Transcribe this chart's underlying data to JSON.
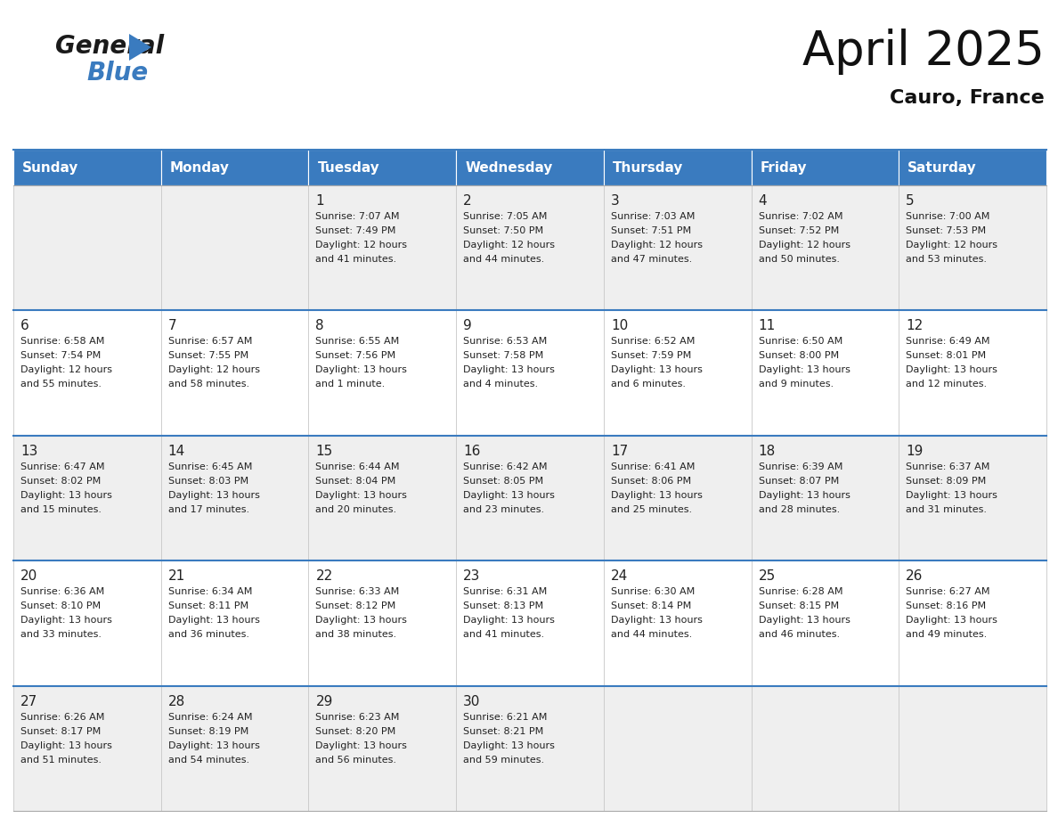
{
  "title": "April 2025",
  "subtitle": "Cauro, France",
  "days_of_week": [
    "Sunday",
    "Monday",
    "Tuesday",
    "Wednesday",
    "Thursday",
    "Friday",
    "Saturday"
  ],
  "header_bg": "#3a7bbf",
  "header_text": "#ffffff",
  "cell_bg_even": "#efefef",
  "cell_bg_odd": "#ffffff",
  "cell_border": "#3a7bbf",
  "row_border": "#3a7bbf",
  "day_num_color": "#222222",
  "text_color": "#222222",
  "title_color": "#111111",
  "subtitle_color": "#111111",
  "logo_black_color": "#1a1a1a",
  "logo_blue_color": "#3a7bbf",
  "weeks": [
    [
      {
        "day": null,
        "text": ""
      },
      {
        "day": null,
        "text": ""
      },
      {
        "day": 1,
        "text": "Sunrise: 7:07 AM\nSunset: 7:49 PM\nDaylight: 12 hours\nand 41 minutes."
      },
      {
        "day": 2,
        "text": "Sunrise: 7:05 AM\nSunset: 7:50 PM\nDaylight: 12 hours\nand 44 minutes."
      },
      {
        "day": 3,
        "text": "Sunrise: 7:03 AM\nSunset: 7:51 PM\nDaylight: 12 hours\nand 47 minutes."
      },
      {
        "day": 4,
        "text": "Sunrise: 7:02 AM\nSunset: 7:52 PM\nDaylight: 12 hours\nand 50 minutes."
      },
      {
        "day": 5,
        "text": "Sunrise: 7:00 AM\nSunset: 7:53 PM\nDaylight: 12 hours\nand 53 minutes."
      }
    ],
    [
      {
        "day": 6,
        "text": "Sunrise: 6:58 AM\nSunset: 7:54 PM\nDaylight: 12 hours\nand 55 minutes."
      },
      {
        "day": 7,
        "text": "Sunrise: 6:57 AM\nSunset: 7:55 PM\nDaylight: 12 hours\nand 58 minutes."
      },
      {
        "day": 8,
        "text": "Sunrise: 6:55 AM\nSunset: 7:56 PM\nDaylight: 13 hours\nand 1 minute."
      },
      {
        "day": 9,
        "text": "Sunrise: 6:53 AM\nSunset: 7:58 PM\nDaylight: 13 hours\nand 4 minutes."
      },
      {
        "day": 10,
        "text": "Sunrise: 6:52 AM\nSunset: 7:59 PM\nDaylight: 13 hours\nand 6 minutes."
      },
      {
        "day": 11,
        "text": "Sunrise: 6:50 AM\nSunset: 8:00 PM\nDaylight: 13 hours\nand 9 minutes."
      },
      {
        "day": 12,
        "text": "Sunrise: 6:49 AM\nSunset: 8:01 PM\nDaylight: 13 hours\nand 12 minutes."
      }
    ],
    [
      {
        "day": 13,
        "text": "Sunrise: 6:47 AM\nSunset: 8:02 PM\nDaylight: 13 hours\nand 15 minutes."
      },
      {
        "day": 14,
        "text": "Sunrise: 6:45 AM\nSunset: 8:03 PM\nDaylight: 13 hours\nand 17 minutes."
      },
      {
        "day": 15,
        "text": "Sunrise: 6:44 AM\nSunset: 8:04 PM\nDaylight: 13 hours\nand 20 minutes."
      },
      {
        "day": 16,
        "text": "Sunrise: 6:42 AM\nSunset: 8:05 PM\nDaylight: 13 hours\nand 23 minutes."
      },
      {
        "day": 17,
        "text": "Sunrise: 6:41 AM\nSunset: 8:06 PM\nDaylight: 13 hours\nand 25 minutes."
      },
      {
        "day": 18,
        "text": "Sunrise: 6:39 AM\nSunset: 8:07 PM\nDaylight: 13 hours\nand 28 minutes."
      },
      {
        "day": 19,
        "text": "Sunrise: 6:37 AM\nSunset: 8:09 PM\nDaylight: 13 hours\nand 31 minutes."
      }
    ],
    [
      {
        "day": 20,
        "text": "Sunrise: 6:36 AM\nSunset: 8:10 PM\nDaylight: 13 hours\nand 33 minutes."
      },
      {
        "day": 21,
        "text": "Sunrise: 6:34 AM\nSunset: 8:11 PM\nDaylight: 13 hours\nand 36 minutes."
      },
      {
        "day": 22,
        "text": "Sunrise: 6:33 AM\nSunset: 8:12 PM\nDaylight: 13 hours\nand 38 minutes."
      },
      {
        "day": 23,
        "text": "Sunrise: 6:31 AM\nSunset: 8:13 PM\nDaylight: 13 hours\nand 41 minutes."
      },
      {
        "day": 24,
        "text": "Sunrise: 6:30 AM\nSunset: 8:14 PM\nDaylight: 13 hours\nand 44 minutes."
      },
      {
        "day": 25,
        "text": "Sunrise: 6:28 AM\nSunset: 8:15 PM\nDaylight: 13 hours\nand 46 minutes."
      },
      {
        "day": 26,
        "text": "Sunrise: 6:27 AM\nSunset: 8:16 PM\nDaylight: 13 hours\nand 49 minutes."
      }
    ],
    [
      {
        "day": 27,
        "text": "Sunrise: 6:26 AM\nSunset: 8:17 PM\nDaylight: 13 hours\nand 51 minutes."
      },
      {
        "day": 28,
        "text": "Sunrise: 6:24 AM\nSunset: 8:19 PM\nDaylight: 13 hours\nand 54 minutes."
      },
      {
        "day": 29,
        "text": "Sunrise: 6:23 AM\nSunset: 8:20 PM\nDaylight: 13 hours\nand 56 minutes."
      },
      {
        "day": 30,
        "text": "Sunrise: 6:21 AM\nSunset: 8:21 PM\nDaylight: 13 hours\nand 59 minutes."
      },
      {
        "day": null,
        "text": ""
      },
      {
        "day": null,
        "text": ""
      },
      {
        "day": null,
        "text": ""
      }
    ]
  ]
}
